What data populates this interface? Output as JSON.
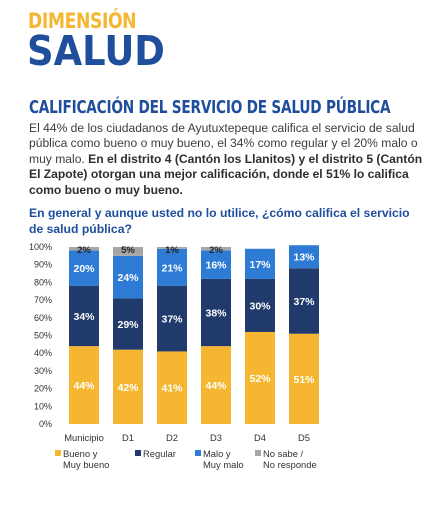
{
  "header": {
    "kicker": "DIMENSIÓN",
    "title": "SALUD"
  },
  "section": {
    "title": "CALIFICACIÓN DEL SERVICIO DE SALUD PÚBLICA",
    "paragraph_plain": "El 44% de los ciudadanos de Ayutuxtepeque califica el servicio de salud pública como bueno o muy bueno, el 34% como regular y el 20% malo o muy malo.",
    "paragraph_bold": "En el distrito 4 (Cantón los Llanitos) y el distrito 5 (Cantón El Zapote) otorgan una mejor calificación, donde el 51% lo califica como bueno o muy bueno."
  },
  "question": "En general y aunque usted no lo utilice, ¿cómo califica el servicio de salud pública?",
  "colors": {
    "bueno": "#f5b731",
    "regular": "#1f3a6b",
    "malo": "#2e7bd6",
    "nosabe": "#a6a6a6"
  },
  "chart_data": {
    "type": "bar",
    "stacked": true,
    "categories": [
      "Municipio",
      "D1",
      "D2",
      "D3",
      "D4",
      "D5"
    ],
    "y_ticks": [
      "0%",
      "10%",
      "20%",
      "30%",
      "40%",
      "50%",
      "60%",
      "70%",
      "80%",
      "90%",
      "100%"
    ],
    "ylim": [
      0,
      100
    ],
    "series": [
      {
        "name": "Bueno y Muy bueno",
        "key": "bueno",
        "values": [
          44,
          42,
          41,
          44,
          52,
          51
        ]
      },
      {
        "name": "Regular",
        "key": "regular",
        "values": [
          34,
          29,
          37,
          38,
          30,
          37
        ]
      },
      {
        "name": "Malo y Muy malo",
        "key": "malo",
        "values": [
          20,
          24,
          21,
          16,
          17,
          13
        ]
      },
      {
        "name": "No sabe / No responde",
        "key": "nosabe",
        "values": [
          2,
          5,
          1,
          2,
          0,
          0
        ]
      }
    ],
    "labels": {
      "bueno": [
        "44%",
        "42%",
        "41%",
        "44%",
        "52%",
        "51%"
      ],
      "regular": [
        "34%",
        "29%",
        "37%",
        "38%",
        "30%",
        "37%"
      ],
      "malo": [
        "20%",
        "24%",
        "21%",
        "16%",
        "17%",
        "13%"
      ],
      "nosabe": [
        "2%",
        "5%",
        "1%",
        "2%",
        "",
        ""
      ]
    },
    "legend": [
      {
        "key": "bueno",
        "line1": "Bueno y",
        "line2": "Muy bueno"
      },
      {
        "key": "regular",
        "line1": "Regular",
        "line2": ""
      },
      {
        "key": "malo",
        "line1": "Malo y",
        "line2": "Muy malo"
      },
      {
        "key": "nosabe",
        "line1": "No sabe /",
        "line2": "No responde"
      }
    ],
    "legend_position": "bottom"
  }
}
